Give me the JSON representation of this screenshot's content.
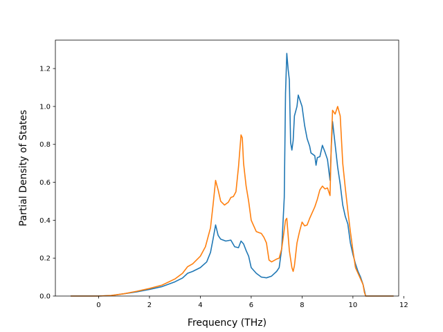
{
  "chart_data": {
    "type": "line",
    "title": "",
    "xlabel": "Frequency (THz)",
    "ylabel": "Partial Density of States",
    "xlim": [
      -1.7,
      11.8
    ],
    "ylim": [
      0.0,
      1.35
    ],
    "xticks": [
      0,
      2,
      4,
      6,
      8,
      10,
      12
    ],
    "yticks": [
      0.0,
      0.2,
      0.4,
      0.6,
      0.8,
      1.0,
      1.2
    ],
    "xtick_labels": [
      "0",
      "2",
      "4",
      "6",
      "8",
      "10",
      "12"
    ],
    "ytick_labels": [
      "0.0",
      "0.2",
      "0.4",
      "0.6",
      "0.8",
      "1.0",
      "1.2"
    ],
    "grid": false,
    "legend": "none",
    "series": [
      {
        "color": "#1f77b4",
        "points": [
          [
            -1.1,
            0.0
          ],
          [
            0.0,
            0.0
          ],
          [
            0.5,
            0.003
          ],
          [
            1.0,
            0.012
          ],
          [
            1.5,
            0.022
          ],
          [
            2.0,
            0.035
          ],
          [
            2.5,
            0.05
          ],
          [
            3.0,
            0.075
          ],
          [
            3.3,
            0.095
          ],
          [
            3.5,
            0.12
          ],
          [
            3.7,
            0.13
          ],
          [
            4.0,
            0.15
          ],
          [
            4.25,
            0.18
          ],
          [
            4.4,
            0.23
          ],
          [
            4.5,
            0.3
          ],
          [
            4.6,
            0.375
          ],
          [
            4.7,
            0.32
          ],
          [
            4.8,
            0.3
          ],
          [
            5.0,
            0.29
          ],
          [
            5.2,
            0.295
          ],
          [
            5.35,
            0.26
          ],
          [
            5.5,
            0.255
          ],
          [
            5.6,
            0.29
          ],
          [
            5.7,
            0.275
          ],
          [
            5.8,
            0.24
          ],
          [
            5.9,
            0.21
          ],
          [
            6.0,
            0.15
          ],
          [
            6.2,
            0.12
          ],
          [
            6.4,
            0.1
          ],
          [
            6.6,
            0.096
          ],
          [
            6.8,
            0.105
          ],
          [
            7.0,
            0.13
          ],
          [
            7.1,
            0.15
          ],
          [
            7.2,
            0.25
          ],
          [
            7.3,
            0.52
          ],
          [
            7.35,
            1.07
          ],
          [
            7.4,
            1.28
          ],
          [
            7.45,
            1.2
          ],
          [
            7.5,
            1.14
          ],
          [
            7.55,
            0.81
          ],
          [
            7.6,
            0.77
          ],
          [
            7.65,
            0.82
          ],
          [
            7.7,
            0.95
          ],
          [
            7.8,
            1.0
          ],
          [
            7.85,
            1.06
          ],
          [
            7.95,
            1.02
          ],
          [
            8.0,
            1.0
          ],
          [
            8.1,
            0.9
          ],
          [
            8.2,
            0.83
          ],
          [
            8.3,
            0.79
          ],
          [
            8.35,
            0.755
          ],
          [
            8.5,
            0.74
          ],
          [
            8.55,
            0.69
          ],
          [
            8.6,
            0.73
          ],
          [
            8.7,
            0.735
          ],
          [
            8.8,
            0.795
          ],
          [
            8.9,
            0.76
          ],
          [
            9.0,
            0.72
          ],
          [
            9.1,
            0.61
          ],
          [
            9.15,
            0.79
          ],
          [
            9.2,
            0.92
          ],
          [
            9.3,
            0.8
          ],
          [
            9.4,
            0.68
          ],
          [
            9.5,
            0.59
          ],
          [
            9.6,
            0.48
          ],
          [
            9.7,
            0.42
          ],
          [
            9.8,
            0.38
          ],
          [
            9.9,
            0.28
          ],
          [
            10.0,
            0.22
          ],
          [
            10.1,
            0.17
          ],
          [
            10.2,
            0.13
          ],
          [
            10.3,
            0.1
          ],
          [
            10.4,
            0.06
          ],
          [
            10.45,
            0.03
          ],
          [
            10.5,
            0.0
          ],
          [
            11.6,
            0.0
          ]
        ]
      },
      {
        "color": "#ff7f0e",
        "points": [
          [
            -1.1,
            0.0
          ],
          [
            0.0,
            0.0
          ],
          [
            0.5,
            0.003
          ],
          [
            1.0,
            0.012
          ],
          [
            1.5,
            0.025
          ],
          [
            2.0,
            0.04
          ],
          [
            2.5,
            0.058
          ],
          [
            3.0,
            0.09
          ],
          [
            3.3,
            0.12
          ],
          [
            3.5,
            0.155
          ],
          [
            3.7,
            0.17
          ],
          [
            4.0,
            0.21
          ],
          [
            4.2,
            0.26
          ],
          [
            4.4,
            0.36
          ],
          [
            4.5,
            0.48
          ],
          [
            4.6,
            0.61
          ],
          [
            4.7,
            0.56
          ],
          [
            4.8,
            0.5
          ],
          [
            4.95,
            0.48
          ],
          [
            5.1,
            0.495
          ],
          [
            5.2,
            0.52
          ],
          [
            5.3,
            0.525
          ],
          [
            5.4,
            0.55
          ],
          [
            5.5,
            0.68
          ],
          [
            5.6,
            0.85
          ],
          [
            5.65,
            0.835
          ],
          [
            5.7,
            0.7
          ],
          [
            5.8,
            0.58
          ],
          [
            5.9,
            0.5
          ],
          [
            6.0,
            0.4
          ],
          [
            6.2,
            0.34
          ],
          [
            6.3,
            0.335
          ],
          [
            6.4,
            0.33
          ],
          [
            6.5,
            0.31
          ],
          [
            6.6,
            0.28
          ],
          [
            6.7,
            0.19
          ],
          [
            6.8,
            0.18
          ],
          [
            7.0,
            0.195
          ],
          [
            7.1,
            0.2
          ],
          [
            7.2,
            0.25
          ],
          [
            7.3,
            0.35
          ],
          [
            7.35,
            0.4
          ],
          [
            7.4,
            0.41
          ],
          [
            7.5,
            0.24
          ],
          [
            7.6,
            0.15
          ],
          [
            7.65,
            0.13
          ],
          [
            7.7,
            0.16
          ],
          [
            7.8,
            0.28
          ],
          [
            7.9,
            0.34
          ],
          [
            8.0,
            0.39
          ],
          [
            8.1,
            0.37
          ],
          [
            8.2,
            0.375
          ],
          [
            8.3,
            0.41
          ],
          [
            8.5,
            0.47
          ],
          [
            8.6,
            0.51
          ],
          [
            8.7,
            0.56
          ],
          [
            8.8,
            0.58
          ],
          [
            8.9,
            0.565
          ],
          [
            9.0,
            0.57
          ],
          [
            9.1,
            0.53
          ],
          [
            9.15,
            0.8
          ],
          [
            9.2,
            0.98
          ],
          [
            9.3,
            0.96
          ],
          [
            9.4,
            1.0
          ],
          [
            9.5,
            0.95
          ],
          [
            9.6,
            0.7
          ],
          [
            9.7,
            0.57
          ],
          [
            9.8,
            0.45
          ],
          [
            9.9,
            0.34
          ],
          [
            10.0,
            0.24
          ],
          [
            10.1,
            0.15
          ],
          [
            10.2,
            0.12
          ],
          [
            10.3,
            0.09
          ],
          [
            10.4,
            0.06
          ],
          [
            10.45,
            0.02
          ],
          [
            10.5,
            0.0
          ],
          [
            11.6,
            0.0
          ]
        ]
      }
    ]
  }
}
